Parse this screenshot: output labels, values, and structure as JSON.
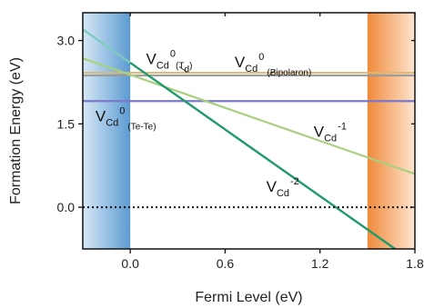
{
  "chart_data": {
    "type": "line",
    "xlabel": "Fermi Level (eV)",
    "ylabel": "Formation Energy (eV)",
    "xlim": [
      -0.3,
      1.8
    ],
    "ylim": [
      -0.75,
      3.5
    ],
    "xticks": [
      {
        "value": 0.0,
        "label": "0.0"
      },
      {
        "value": 0.6,
        "label": "0.6"
      },
      {
        "value": 1.2,
        "label": "1.2"
      },
      {
        "value": 1.8,
        "label": "1.8"
      }
    ],
    "yticks": [
      {
        "value": 0.0,
        "label": "0.0"
      },
      {
        "value": 1.5,
        "label": "1.5"
      },
      {
        "value": 3.0,
        "label": "3.0"
      }
    ],
    "bands": [
      {
        "from": -0.3,
        "to": 0.0,
        "color_a": "#d7e8f6",
        "color_b": "#5b9bd1",
        "direction": "left-to-right"
      },
      {
        "from": 1.5,
        "to": 1.8,
        "color_a": "#f08a3a",
        "color_b": "#fde5d0",
        "direction": "left-to-right"
      }
    ],
    "series": [
      {
        "id": "s1",
        "x": [
          -0.3,
          1.8
        ],
        "y": [
          2.42,
          2.42
        ],
        "color": "#d9b87a",
        "width": 2
      },
      {
        "id": "s2",
        "x": [
          -0.3,
          1.8
        ],
        "y": [
          2.37,
          2.37
        ],
        "color": "#9a9a9a",
        "width": 2
      },
      {
        "id": "s3",
        "x": [
          -0.3,
          1.8
        ],
        "y": [
          1.91,
          1.91
        ],
        "color": "#7b78c9",
        "width": 2.2
      },
      {
        "id": "s4",
        "x": [
          -0.3,
          1.8
        ],
        "y": [
          2.68,
          0.6
        ],
        "color": "#a8d080",
        "width": 2.2
      },
      {
        "id": "s5",
        "x": [
          -0.3,
          1.8
        ],
        "y": [
          3.2,
          -1.0
        ],
        "color": "#7ecbbd",
        "width": 2.2,
        "clip_x_max": 0.0
      },
      {
        "id": "s6",
        "x": [
          -0.3,
          1.8
        ],
        "y": [
          3.2,
          -1.0
        ],
        "color": "#1f9a6b",
        "width": 2.4,
        "clip_x_min": 0.0
      }
    ],
    "reference_lines": [
      {
        "y": 0.0,
        "style": "dotted",
        "color": "#111111"
      }
    ],
    "annotations": [
      {
        "id": "a1",
        "x": 0.1,
        "y": 2.58,
        "base": "V",
        "sub": "Cd",
        "sup": "0",
        "tail": "(T",
        "tail_sub": "d",
        "tail_end": ")"
      },
      {
        "id": "a2",
        "x": 0.66,
        "y": 2.52,
        "base": "V",
        "sub": "Cd",
        "sup": "0",
        "tail_sub": "(Bipolaron)"
      },
      {
        "id": "a3",
        "x": -0.22,
        "y": 1.55,
        "base": "V",
        "sub": "Cd",
        "sup": "0",
        "tail_sub": "(Te-Te)"
      },
      {
        "id": "a4",
        "x": 1.16,
        "y": 1.27,
        "base": "V",
        "sub": "Cd",
        "sup": "-1"
      },
      {
        "id": "a5",
        "x": 0.86,
        "y": 0.28,
        "base": "V",
        "sub": "Cd",
        "sup": "-2"
      }
    ],
    "pointers": [
      {
        "from": [
          0.31,
          2.53
        ],
        "to": [
          0.36,
          2.43
        ]
      },
      {
        "from": [
          0.92,
          2.47
        ],
        "to": [
          0.88,
          2.38
        ]
      }
    ]
  }
}
